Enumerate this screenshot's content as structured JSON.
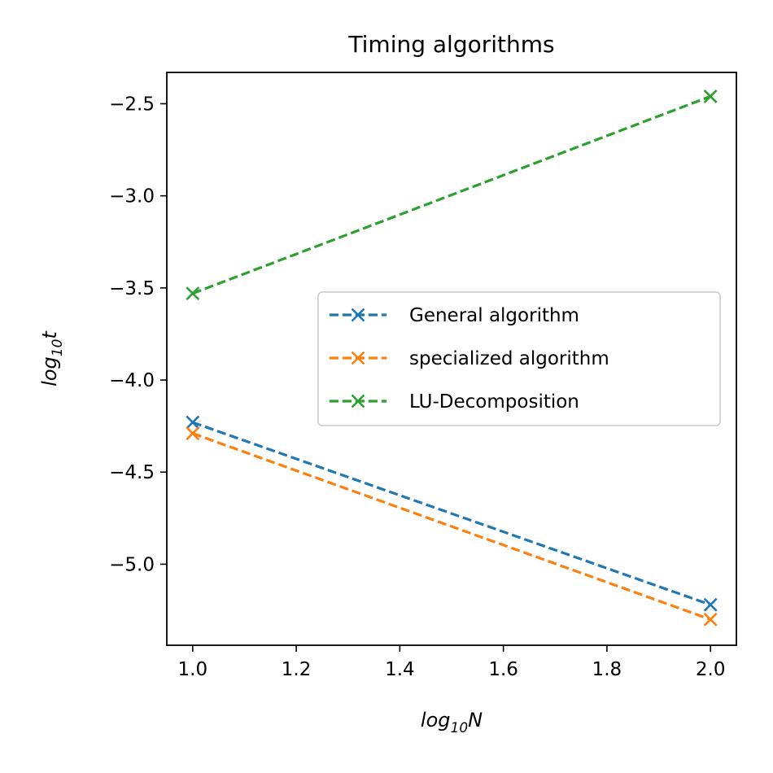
{
  "chart_data": {
    "type": "line",
    "title": "Timing algorithms",
    "xlabel": {
      "base": "log",
      "sub": "10",
      "var": "N"
    },
    "ylabel": {
      "base": "log",
      "sub": "10",
      "var": "t"
    },
    "xlim": [
      0.95,
      2.05
    ],
    "ylim": [
      -5.44,
      -2.33
    ],
    "xticks": [
      1.0,
      1.2,
      1.4,
      1.6,
      1.8,
      2.0
    ],
    "xtick_labels": [
      "1.0",
      "1.2",
      "1.4",
      "1.6",
      "1.8",
      "2.0"
    ],
    "yticks": [
      -2.5,
      -3.0,
      -3.5,
      -4.0,
      -4.5,
      -5.0
    ],
    "ytick_labels": [
      "−2.5",
      "−3.0",
      "−3.5",
      "−4.0",
      "−4.5",
      "−5.0"
    ],
    "legend_position": "center-right",
    "series": [
      {
        "name": "General algorithm",
        "color": "#1f77b4",
        "linestyle": "dashed",
        "marker": "x",
        "x": [
          1.0,
          2.0
        ],
        "y": [
          -4.23,
          -5.22
        ]
      },
      {
        "name": "specialized algorithm",
        "color": "#ff7f0e",
        "linestyle": "dashed",
        "marker": "x",
        "x": [
          1.0,
          2.0
        ],
        "y": [
          -4.29,
          -5.3
        ]
      },
      {
        "name": "LU-Decomposition",
        "color": "#2ca02c",
        "linestyle": "dashed",
        "marker": "x",
        "x": [
          1.0,
          2.0
        ],
        "y": [
          -3.53,
          -2.46
        ]
      }
    ]
  }
}
